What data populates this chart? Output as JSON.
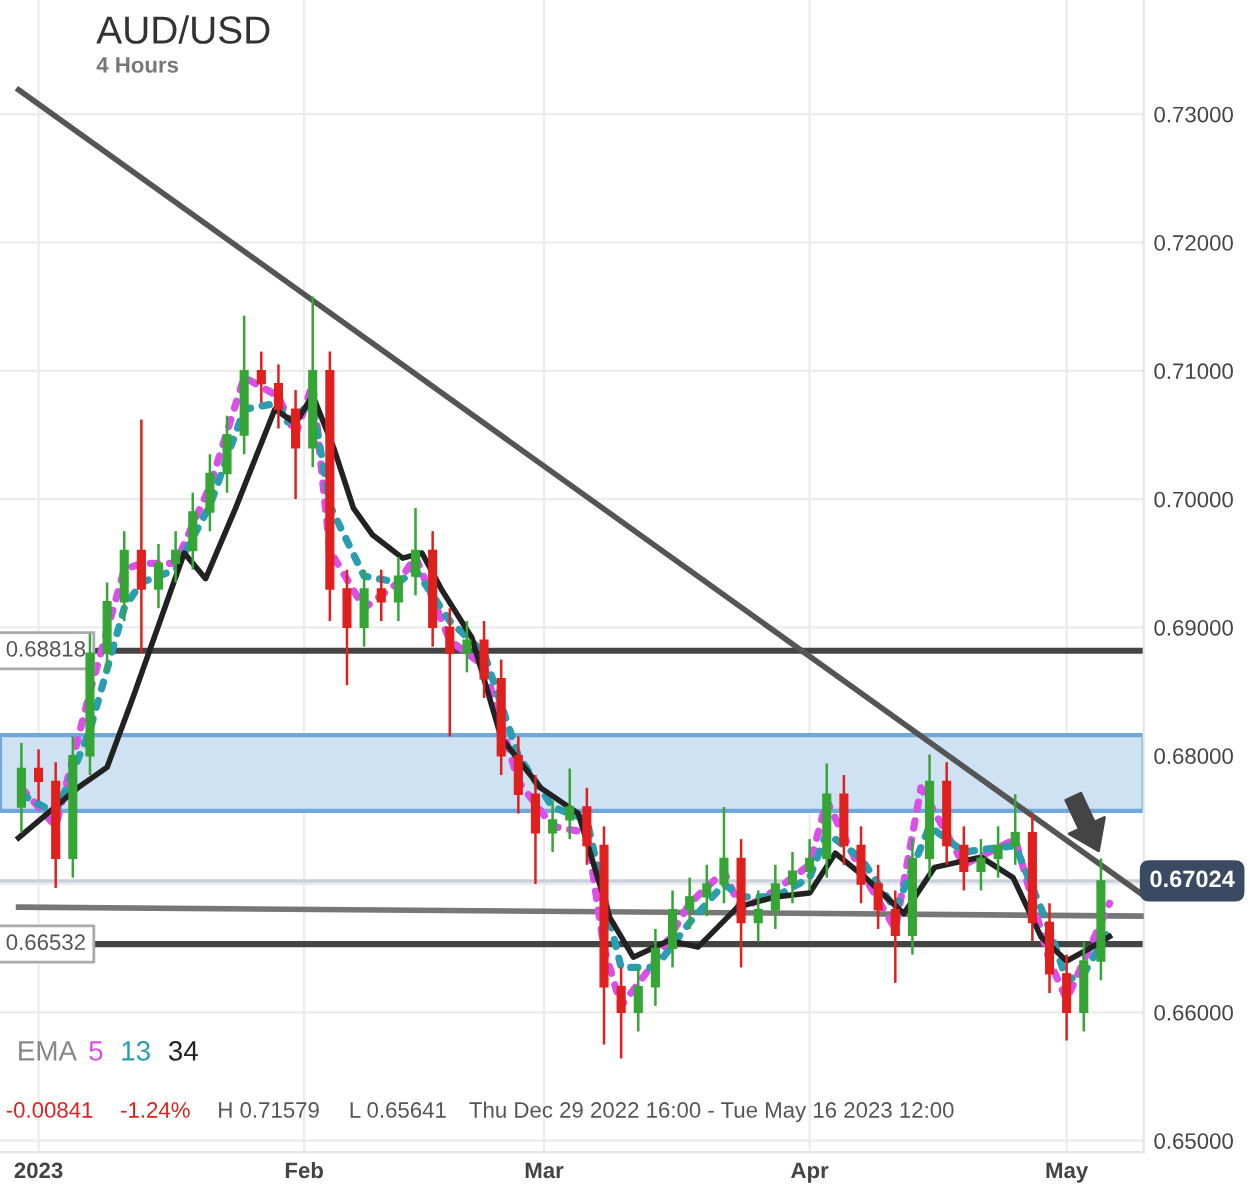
{
  "chart_data": {
    "type": "candlestick",
    "title": "AUD/USD",
    "subtitle": "4 Hours",
    "xlim": [
      "2022-12-27T12:00",
      "2023-05-10"
    ],
    "ylim": [
      0.6491,
      0.7389
    ],
    "xticks": [
      {
        "value": "2023-01-01",
        "label": "2023"
      },
      {
        "value": "2023-02-01",
        "label": "Feb"
      },
      {
        "value": "2023-03-01",
        "label": "Mar"
      },
      {
        "value": "2023-04-01",
        "label": "Apr"
      },
      {
        "value": "2023-05-01",
        "label": "May"
      }
    ],
    "yticks": [
      {
        "value": 0.65,
        "label": "0.65000"
      },
      {
        "value": 0.66,
        "label": "0.66000"
      },
      {
        "value": 0.67,
        "label": null
      },
      {
        "value": 0.68,
        "label": "0.68000"
      },
      {
        "value": 0.69,
        "label": "0.69000"
      },
      {
        "value": 0.7,
        "label": "0.70000"
      },
      {
        "value": 0.71,
        "label": "0.71000"
      },
      {
        "value": 0.72,
        "label": "0.72000"
      },
      {
        "value": 0.73,
        "label": "0.73000"
      }
    ],
    "grid": true,
    "legend": "bottom left",
    "legend_title": "EMA",
    "x": [
      "2022-12-30",
      "2023-01-01",
      "2023-01-03",
      "2023-01-05",
      "2023-01-07",
      "2023-01-09",
      "2023-01-11",
      "2023-01-13",
      "2023-01-15",
      "2023-01-17",
      "2023-01-19",
      "2023-01-21",
      "2023-01-23",
      "2023-01-25",
      "2023-01-27",
      "2023-01-29",
      "2023-01-31",
      "2023-02-02",
      "2023-02-04",
      "2023-02-06",
      "2023-02-08",
      "2023-02-10",
      "2023-02-12",
      "2023-02-14",
      "2023-02-16",
      "2023-02-18",
      "2023-02-20",
      "2023-02-22",
      "2023-02-24",
      "2023-02-26",
      "2023-02-28",
      "2023-03-02",
      "2023-03-04",
      "2023-03-06",
      "2023-03-08",
      "2023-03-10",
      "2023-03-12",
      "2023-03-14",
      "2023-03-16",
      "2023-03-18",
      "2023-03-20",
      "2023-03-22",
      "2023-03-24",
      "2023-03-26",
      "2023-03-28",
      "2023-03-30",
      "2023-04-01",
      "2023-04-03",
      "2023-04-05",
      "2023-04-07",
      "2023-04-09",
      "2023-04-11",
      "2023-04-13",
      "2023-04-15",
      "2023-04-17",
      "2023-04-19",
      "2023-04-21",
      "2023-04-23",
      "2023-04-25",
      "2023-04-27",
      "2023-04-29",
      "2023-05-01",
      "2023-05-03",
      "2023-05-05"
    ],
    "ohlc": [
      [
        0.676,
        0.681,
        0.674,
        0.679
      ],
      [
        0.679,
        0.6805,
        0.6765,
        0.678
      ],
      [
        0.678,
        0.6795,
        0.6697,
        0.672
      ],
      [
        0.672,
        0.6815,
        0.6705,
        0.68
      ],
      [
        0.68,
        0.6895,
        0.6785,
        0.688
      ],
      [
        0.688,
        0.6935,
        0.6865,
        0.692
      ],
      [
        0.692,
        0.6975,
        0.6905,
        0.696
      ],
      [
        0.696,
        0.7062,
        0.688,
        0.693
      ],
      [
        0.693,
        0.6965,
        0.6915,
        0.695
      ],
      [
        0.695,
        0.6975,
        0.6935,
        0.696
      ],
      [
        0.696,
        0.7005,
        0.6945,
        0.699
      ],
      [
        0.699,
        0.7035,
        0.6975,
        0.702
      ],
      [
        0.702,
        0.7065,
        0.7005,
        0.705
      ],
      [
        0.705,
        0.7143,
        0.7035,
        0.71
      ],
      [
        0.71,
        0.7115,
        0.7075,
        0.709
      ],
      [
        0.709,
        0.7105,
        0.7055,
        0.707
      ],
      [
        0.707,
        0.7085,
        0.7,
        0.704
      ],
      [
        0.704,
        0.71579,
        0.7025,
        0.71
      ],
      [
        0.71,
        0.7115,
        0.6905,
        0.693
      ],
      [
        0.693,
        0.6945,
        0.6855,
        0.69
      ],
      [
        0.69,
        0.6945,
        0.6885,
        0.693
      ],
      [
        0.693,
        0.6945,
        0.6905,
        0.692
      ],
      [
        0.692,
        0.6955,
        0.6905,
        0.694
      ],
      [
        0.694,
        0.6993,
        0.6925,
        0.696
      ],
      [
        0.696,
        0.6975,
        0.6885,
        0.69
      ],
      [
        0.69,
        0.6915,
        0.6815,
        0.688
      ],
      [
        0.688,
        0.6905,
        0.6865,
        0.689
      ],
      [
        0.689,
        0.6905,
        0.6845,
        0.686
      ],
      [
        0.686,
        0.6875,
        0.6785,
        0.68
      ],
      [
        0.68,
        0.6815,
        0.6755,
        0.677
      ],
      [
        0.677,
        0.6785,
        0.67,
        0.674
      ],
      [
        0.674,
        0.6765,
        0.6725,
        0.675
      ],
      [
        0.675,
        0.679,
        0.6735,
        0.676
      ],
      [
        0.676,
        0.6775,
        0.6715,
        0.673
      ],
      [
        0.673,
        0.6745,
        0.6575,
        0.662
      ],
      [
        0.662,
        0.6635,
        0.65641,
        0.66
      ],
      [
        0.66,
        0.6635,
        0.6585,
        0.662
      ],
      [
        0.662,
        0.6665,
        0.6605,
        0.665
      ],
      [
        0.665,
        0.6695,
        0.6635,
        0.668
      ],
      [
        0.668,
        0.6705,
        0.6665,
        0.669
      ],
      [
        0.669,
        0.6715,
        0.6675,
        0.67
      ],
      [
        0.67,
        0.676,
        0.6685,
        0.672
      ],
      [
        0.672,
        0.6735,
        0.6635,
        0.667
      ],
      [
        0.667,
        0.6695,
        0.6655,
        0.668
      ],
      [
        0.668,
        0.6715,
        0.6665,
        0.67
      ],
      [
        0.67,
        0.6725,
        0.6685,
        0.671
      ],
      [
        0.671,
        0.6735,
        0.6695,
        0.672
      ],
      [
        0.672,
        0.6794,
        0.6705,
        0.677
      ],
      [
        0.677,
        0.6785,
        0.6715,
        0.673
      ],
      [
        0.673,
        0.6745,
        0.6685,
        0.67
      ],
      [
        0.67,
        0.6715,
        0.6665,
        0.668
      ],
      [
        0.668,
        0.6695,
        0.6623,
        0.666
      ],
      [
        0.666,
        0.6735,
        0.6645,
        0.672
      ],
      [
        0.672,
        0.6801,
        0.6705,
        0.678
      ],
      [
        0.678,
        0.6795,
        0.6715,
        0.673
      ],
      [
        0.673,
        0.6745,
        0.6695,
        0.671
      ],
      [
        0.671,
        0.6735,
        0.6695,
        0.672
      ],
      [
        0.672,
        0.6745,
        0.6705,
        0.673
      ],
      [
        0.673,
        0.677,
        0.6715,
        0.674
      ],
      [
        0.674,
        0.6755,
        0.6655,
        0.667
      ],
      [
        0.667,
        0.6685,
        0.6615,
        0.663
      ],
      [
        0.663,
        0.6645,
        0.6578,
        0.66
      ],
      [
        0.66,
        0.6655,
        0.6585,
        0.664
      ],
      [
        0.664,
        0.672,
        0.6625,
        0.67024
      ]
    ],
    "series": [
      {
        "type": "line",
        "color": "#555555",
        "x": [
          "2022-12-29T16:00",
          "2023-05-10"
        ],
        "values": [
          0.7319,
          0.6691
        ]
      },
      {
        "type": "line",
        "color": "#777777",
        "x": [
          "2022-12-29T16:00",
          "2023-05-10"
        ],
        "values": [
          0.6682,
          0.6675
        ]
      },
      {
        "type": "line",
        "name": "5",
        "color": "#d94fe8",
        "line_style": "dotted",
        "x": [
          "2022-12-30",
          "2023-01-03",
          "2023-01-07",
          "2023-01-11",
          "2023-01-13",
          "2023-01-17",
          "2023-01-21",
          "2023-01-25",
          "2023-01-29",
          "2023-01-31",
          "2023-02-02",
          "2023-02-04",
          "2023-02-08",
          "2023-02-12",
          "2023-02-14",
          "2023-02-18",
          "2023-02-22",
          "2023-02-26",
          "2023-03-02",
          "2023-03-06",
          "2023-03-08",
          "2023-03-10",
          "2023-03-14",
          "2023-03-18",
          "2023-03-22",
          "2023-03-24",
          "2023-03-28",
          "2023-04-01",
          "2023-04-03",
          "2023-04-07",
          "2023-04-11",
          "2023-04-14",
          "2023-04-19",
          "2023-04-25",
          "2023-04-29",
          "2023-05-01",
          "2023-05-03",
          "2023-05-06"
        ],
        "values": [
          0.6775,
          0.6745,
          0.685,
          0.6945,
          0.695,
          0.695,
          0.701,
          0.7095,
          0.708,
          0.705,
          0.709,
          0.696,
          0.6915,
          0.6935,
          0.6955,
          0.689,
          0.687,
          0.678,
          0.6745,
          0.674,
          0.665,
          0.6605,
          0.664,
          0.6685,
          0.671,
          0.668,
          0.6695,
          0.6715,
          0.6765,
          0.671,
          0.6665,
          0.6775,
          0.6715,
          0.6735,
          0.664,
          0.661,
          0.664,
          0.6685
        ]
      },
      {
        "type": "line",
        "name": "13",
        "color": "#2a9db0",
        "line_style": "dotted",
        "x": [
          "2022-12-30",
          "2023-01-03",
          "2023-01-07",
          "2023-01-11",
          "2023-01-13",
          "2023-01-17",
          "2023-01-21",
          "2023-01-25",
          "2023-01-29",
          "2023-01-30",
          "2023-02-02",
          "2023-02-04",
          "2023-02-08",
          "2023-02-12",
          "2023-02-14",
          "2023-02-18",
          "2023-02-22",
          "2023-02-26",
          "2023-03-02",
          "2023-03-06",
          "2023-03-08",
          "2023-03-10",
          "2023-03-14",
          "2023-03-18",
          "2023-03-22",
          "2023-03-24",
          "2023-03-28",
          "2023-04-01",
          "2023-04-03",
          "2023-04-07",
          "2023-04-11",
          "2023-04-15",
          "2023-04-19",
          "2023-04-25",
          "2023-04-29",
          "2023-05-01",
          "2023-05-03",
          "2023-05-06"
        ],
        "values": [
          0.677,
          0.6755,
          0.682,
          0.6915,
          0.6935,
          0.6945,
          0.6995,
          0.707,
          0.7075,
          0.706,
          0.7075,
          0.6995,
          0.694,
          0.6935,
          0.6945,
          0.6905,
          0.688,
          0.68,
          0.676,
          0.675,
          0.669,
          0.6635,
          0.6635,
          0.667,
          0.67,
          0.669,
          0.669,
          0.6705,
          0.674,
          0.672,
          0.668,
          0.6745,
          0.6725,
          0.673,
          0.6665,
          0.6625,
          0.663,
          0.6665
        ]
      },
      {
        "type": "line",
        "name": "34",
        "color": "#222222",
        "line_style": "solid",
        "x": [
          "2022-12-29T16:00",
          "2023-01-05T14:00",
          "2023-01-09",
          "2023-01-12",
          "2023-01-18",
          "2023-01-20T12:00",
          "2023-01-24",
          "2023-01-28T14:00",
          "2023-01-31",
          "2023-02-02",
          "2023-02-04T12:00",
          "2023-02-06T18:00",
          "2023-02-09",
          "2023-02-12T12:00",
          "2023-02-14T18:00",
          "2023-02-17",
          "2023-02-20T14:00",
          "2023-02-24",
          "2023-02-28T14:00",
          "2023-03-05",
          "2023-03-08T16:00",
          "2023-03-11T10:00",
          "2023-03-15T14:00",
          "2023-03-19",
          "2023-03-23T14:00",
          "2023-03-28",
          "2023-04-01",
          "2023-04-04",
          "2023-04-07T12:00",
          "2023-04-12",
          "2023-04-15T14:00",
          "2023-04-21",
          "2023-04-24T18:00",
          "2023-04-28",
          "2023-05-01",
          "2023-05-04",
          "2023-05-06"
        ],
        "values": [
          0.6736,
          0.6775,
          0.6791,
          0.6845,
          0.6958,
          0.6938,
          0.6993,
          0.707,
          0.7059,
          0.7081,
          0.7039,
          0.6993,
          0.6972,
          0.6954,
          0.6958,
          0.693,
          0.6892,
          0.6814,
          0.6775,
          0.6755,
          0.6674,
          0.6643,
          0.6656,
          0.6651,
          0.6682,
          0.669,
          0.6693,
          0.6724,
          0.6705,
          0.6677,
          0.6713,
          0.6721,
          0.6705,
          0.6659,
          0.664,
          0.6651,
          0.6659
        ]
      }
    ],
    "bands": [
      {
        "axis": "y",
        "from": 0.6757,
        "to": 0.6816,
        "color": "#cfe2f3"
      }
    ],
    "ref_lines": [
      {
        "axis": "y",
        "value": 0.68818,
        "label": "0.68818",
        "color": "#444444"
      },
      {
        "axis": "y",
        "value": 0.66532,
        "label": "0.66532",
        "color": "#444444"
      },
      {
        "axis": "y",
        "value": 0.67024,
        "label": "0.67024",
        "color": "#c9cfdc"
      }
    ],
    "annotations": [
      "-0.00841",
      "-1.24%",
      "H 0.71579",
      "L 0.65641",
      "Thu Dec 29 2022 16:00 - Tue May 16 2023 12:00"
    ]
  }
}
